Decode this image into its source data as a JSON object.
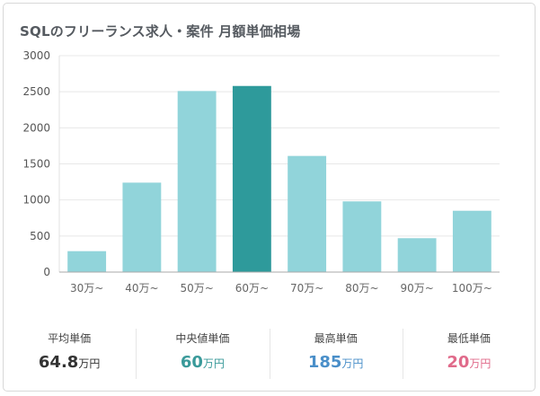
{
  "title": "SQLのフリーランス求人・案件 月額単価相場",
  "chart_data": {
    "type": "bar",
    "title": "SQLのフリーランス求人・案件 月額単価相場",
    "xlabel": "",
    "ylabel": "",
    "categories": [
      "30万~",
      "40万~",
      "50万~",
      "60万~",
      "70万~",
      "80万~",
      "90万~",
      "100万~"
    ],
    "values": [
      290,
      1240,
      2510,
      2580,
      1610,
      980,
      470,
      850
    ],
    "highlight_index": 3,
    "ylim": [
      0,
      3000
    ],
    "yticks": [
      0,
      500,
      1000,
      1500,
      2000,
      2500,
      3000
    ],
    "grid": true,
    "colors": {
      "bar": "#91d4da",
      "highlight": "#2e9a9b"
    }
  },
  "stats": [
    {
      "label": "平均単価",
      "value": "64.8",
      "unit": "万円",
      "color": "#333333"
    },
    {
      "label": "中央値単価",
      "value": "60",
      "unit": "万円",
      "color": "#3a9a9a"
    },
    {
      "label": "最高単価",
      "value": "185",
      "unit": "万円",
      "color": "#4a8fc9"
    },
    {
      "label": "最低単価",
      "value": "20",
      "unit": "万円",
      "color": "#e06a8a"
    }
  ]
}
